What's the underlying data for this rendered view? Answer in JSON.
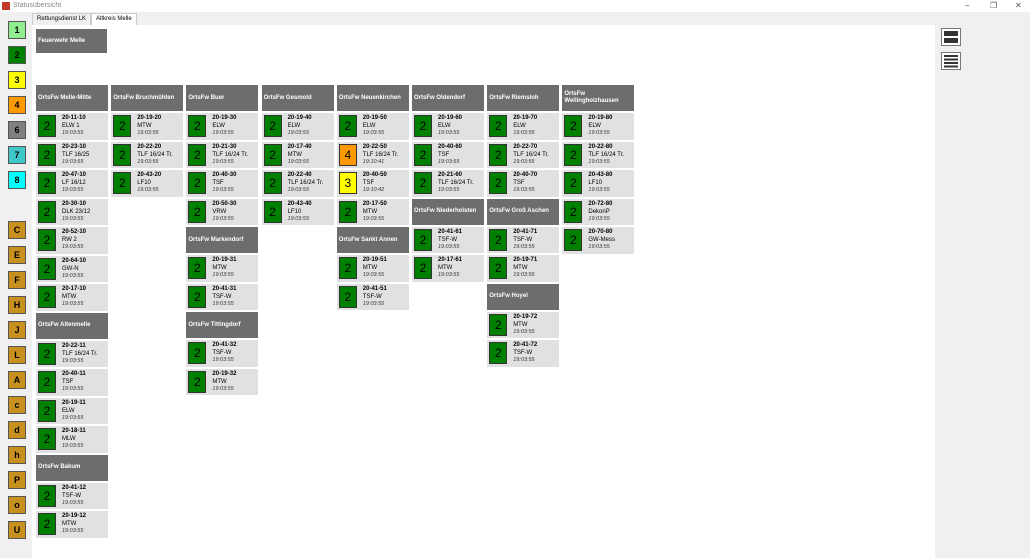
{
  "window_title": "Statusübersicht",
  "tabs": [
    "Rettungsdienst LK",
    "Altkreis Melle"
  ],
  "sidebar_buttons": [
    "1",
    "2",
    "3",
    "4",
    "6",
    "7",
    "8",
    "C",
    "E",
    "F",
    "H",
    "J",
    "L",
    "A",
    "c",
    "d",
    "h",
    "P",
    "o",
    "U"
  ],
  "site_title": "Feuerwehr Melle",
  "columns": [
    {
      "groups": [
        {
          "name": "OrtsFw Melle-Mitte",
          "units": [
            {
              "status": "2",
              "id": "20-11-10",
              "type": "ELW 1",
              "time": "19:03:55"
            },
            {
              "status": "2",
              "id": "20-23-10",
              "type": "TLF 16/25",
              "time": "19:03:55"
            },
            {
              "status": "2",
              "id": "20-47-10",
              "type": "LF 16/12",
              "time": "19:03:55"
            },
            {
              "status": "2",
              "id": "20-30-10",
              "type": "DLK 23/12",
              "time": "19:03:55"
            },
            {
              "status": "2",
              "id": "20-52-10",
              "type": "RW 2",
              "time": "19:03:55"
            },
            {
              "status": "2",
              "id": "20-64-10",
              "type": "GW-N",
              "time": "19:03:55"
            },
            {
              "status": "2",
              "id": "20-17-10",
              "type": "MTW",
              "time": "19:03:55"
            }
          ]
        },
        {
          "name": "OrtsFw Altenmelle",
          "units": [
            {
              "status": "2",
              "id": "20-22-11",
              "type": "TLF 16/24 Tr.",
              "time": "19:03:55"
            },
            {
              "status": "2",
              "id": "20-40-11",
              "type": "TSF",
              "time": "19:03:55"
            },
            {
              "status": "2",
              "id": "20-19-11",
              "type": "ELW",
              "time": "19:03:55"
            },
            {
              "status": "2",
              "id": "20-18-11",
              "type": "MLW",
              "time": "19:03:55"
            }
          ]
        },
        {
          "name": "OrtsFw Bakum",
          "units": [
            {
              "status": "2",
              "id": "20-41-12",
              "type": "TSF-W",
              "time": "19:03:55"
            },
            {
              "status": "2",
              "id": "20-19-12",
              "type": "MTW",
              "time": "19:03:55"
            }
          ]
        }
      ]
    },
    {
      "groups": [
        {
          "name": "OrtsFw Bruchmühlen",
          "units": [
            {
              "status": "2",
              "id": "20-19-20",
              "type": "MTW",
              "time": "19:03:55"
            },
            {
              "status": "2",
              "id": "20-22-20",
              "type": "TLF 16/24 Tr.",
              "time": "19:03:55"
            },
            {
              "status": "2",
              "id": "20-43-20",
              "type": "LF10",
              "time": "19:03:55"
            }
          ]
        }
      ]
    },
    {
      "groups": [
        {
          "name": "OrtsFw Buer",
          "units": [
            {
              "status": "2",
              "id": "20-19-30",
              "type": "ELW",
              "time": "19:03:55"
            },
            {
              "status": "2",
              "id": "20-21-30",
              "type": "TLF 16/24 Tr.",
              "time": "19:03:55"
            },
            {
              "status": "2",
              "id": "20-40-30",
              "type": "TSF",
              "time": "19:03:55"
            },
            {
              "status": "2",
              "id": "20-50-30",
              "type": "VRW",
              "time": "19:03:55"
            }
          ]
        },
        {
          "name": "OrtsFw Markendorf",
          "units": [
            {
              "status": "2",
              "id": "20-19-31",
              "type": "MTW",
              "time": "19:03:55"
            },
            {
              "status": "2",
              "id": "20-41-31",
              "type": "TSF-W",
              "time": "19:03:55"
            }
          ]
        },
        {
          "name": "OrtsFw Tittingdorf",
          "units": [
            {
              "status": "2",
              "id": "20-41-32",
              "type": "TSF-W",
              "time": "19:03:55"
            },
            {
              "status": "2",
              "id": "20-19-32",
              "type": "MTW",
              "time": "19:03:55"
            }
          ]
        }
      ]
    },
    {
      "groups": [
        {
          "name": "OrtsFw Gesmold",
          "units": [
            {
              "status": "2",
              "id": "20-19-40",
              "type": "ELW",
              "time": "19:03:55"
            },
            {
              "status": "2",
              "id": "20-17-40",
              "type": "MTW",
              "time": "19:03:55"
            },
            {
              "status": "2",
              "id": "20-22-40",
              "type": "TLF 16/24 Tr.",
              "time": "19:03:55"
            },
            {
              "status": "2",
              "id": "20-43-40",
              "type": "LF10",
              "time": "19:03:55"
            }
          ]
        }
      ]
    },
    {
      "groups": [
        {
          "name": "OrtsFw Neuenkirchen",
          "units": [
            {
              "status": "2",
              "id": "20-19-50",
              "type": "ELW",
              "time": "19:03:55"
            },
            {
              "status": "4",
              "id": "20-22-50",
              "type": "TLF 16/24 Tr.",
              "time": "19:10:41"
            },
            {
              "status": "3",
              "id": "20-40-50",
              "type": "TSF",
              "time": "19:10:42"
            },
            {
              "status": "2",
              "id": "20-17-50",
              "type": "MTW",
              "time": "19:03:55"
            }
          ]
        },
        {
          "name": "OrtsFw Sankt Annen",
          "units": [
            {
              "status": "2",
              "id": "20-19-51",
              "type": "MTW",
              "time": "19:03:55"
            },
            {
              "status": "2",
              "id": "20-41-51",
              "type": "TSF-W",
              "time": "19:03:55"
            }
          ]
        }
      ]
    },
    {
      "groups": [
        {
          "name": "OrtsFw Oldendorf",
          "units": [
            {
              "status": "2",
              "id": "20-19-60",
              "type": "ELW",
              "time": "19:03:55"
            },
            {
              "status": "2",
              "id": "20-40-60",
              "type": "TSF",
              "time": "19:03:55"
            },
            {
              "status": "2",
              "id": "20-21-60",
              "type": "TLF 16/24 Tr.",
              "time": "19:03:55"
            }
          ]
        },
        {
          "name": "OrtsFw Niederholsten",
          "units": [
            {
              "status": "2",
              "id": "20-41-61",
              "type": "TSF-W",
              "time": "19:03:55"
            },
            {
              "status": "2",
              "id": "20-17-61",
              "type": "MTW",
              "time": "19:03:55"
            }
          ]
        }
      ]
    },
    {
      "groups": [
        {
          "name": "OrtsFw Riemsloh",
          "units": [
            {
              "status": "2",
              "id": "20-19-70",
              "type": "ELW",
              "time": "19:03:55"
            },
            {
              "status": "2",
              "id": "20-22-70",
              "type": "TLF 16/24 Tr.",
              "time": "19:03:55"
            },
            {
              "status": "2",
              "id": "20-40-70",
              "type": "TSF",
              "time": "19:03:55"
            }
          ]
        },
        {
          "name": "OrtsFw Groß Aschen",
          "units": [
            {
              "status": "2",
              "id": "20-41-71",
              "type": "TSF-W",
              "time": "19:03:55"
            },
            {
              "status": "2",
              "id": "20-19-71",
              "type": "MTW",
              "time": "19:03:55"
            }
          ]
        },
        {
          "name": "OrtsFw Hoyel",
          "units": [
            {
              "status": "2",
              "id": "20-19-72",
              "type": "MTW",
              "time": "19:03:55"
            },
            {
              "status": "2",
              "id": "20-41-72",
              "type": "TSF-W",
              "time": "19:03:55"
            }
          ]
        }
      ]
    },
    {
      "groups": [
        {
          "name": "OrtsFw Wellingholzhausen",
          "units": [
            {
              "status": "2",
              "id": "20-19-80",
              "type": "ELW",
              "time": "19:03:55"
            },
            {
              "status": "2",
              "id": "20-22-80",
              "type": "TLF 16/24 Tr.",
              "time": "19:03:55"
            },
            {
              "status": "2",
              "id": "20-43-80",
              "type": "LF10",
              "time": "19:03:55"
            },
            {
              "status": "2",
              "id": "20-72-80",
              "type": "DekonP",
              "time": "19:03:55"
            },
            {
              "status": "2",
              "id": "20-70-80",
              "type": "GW-Mess",
              "time": "19:03:55"
            }
          ]
        }
      ]
    }
  ]
}
